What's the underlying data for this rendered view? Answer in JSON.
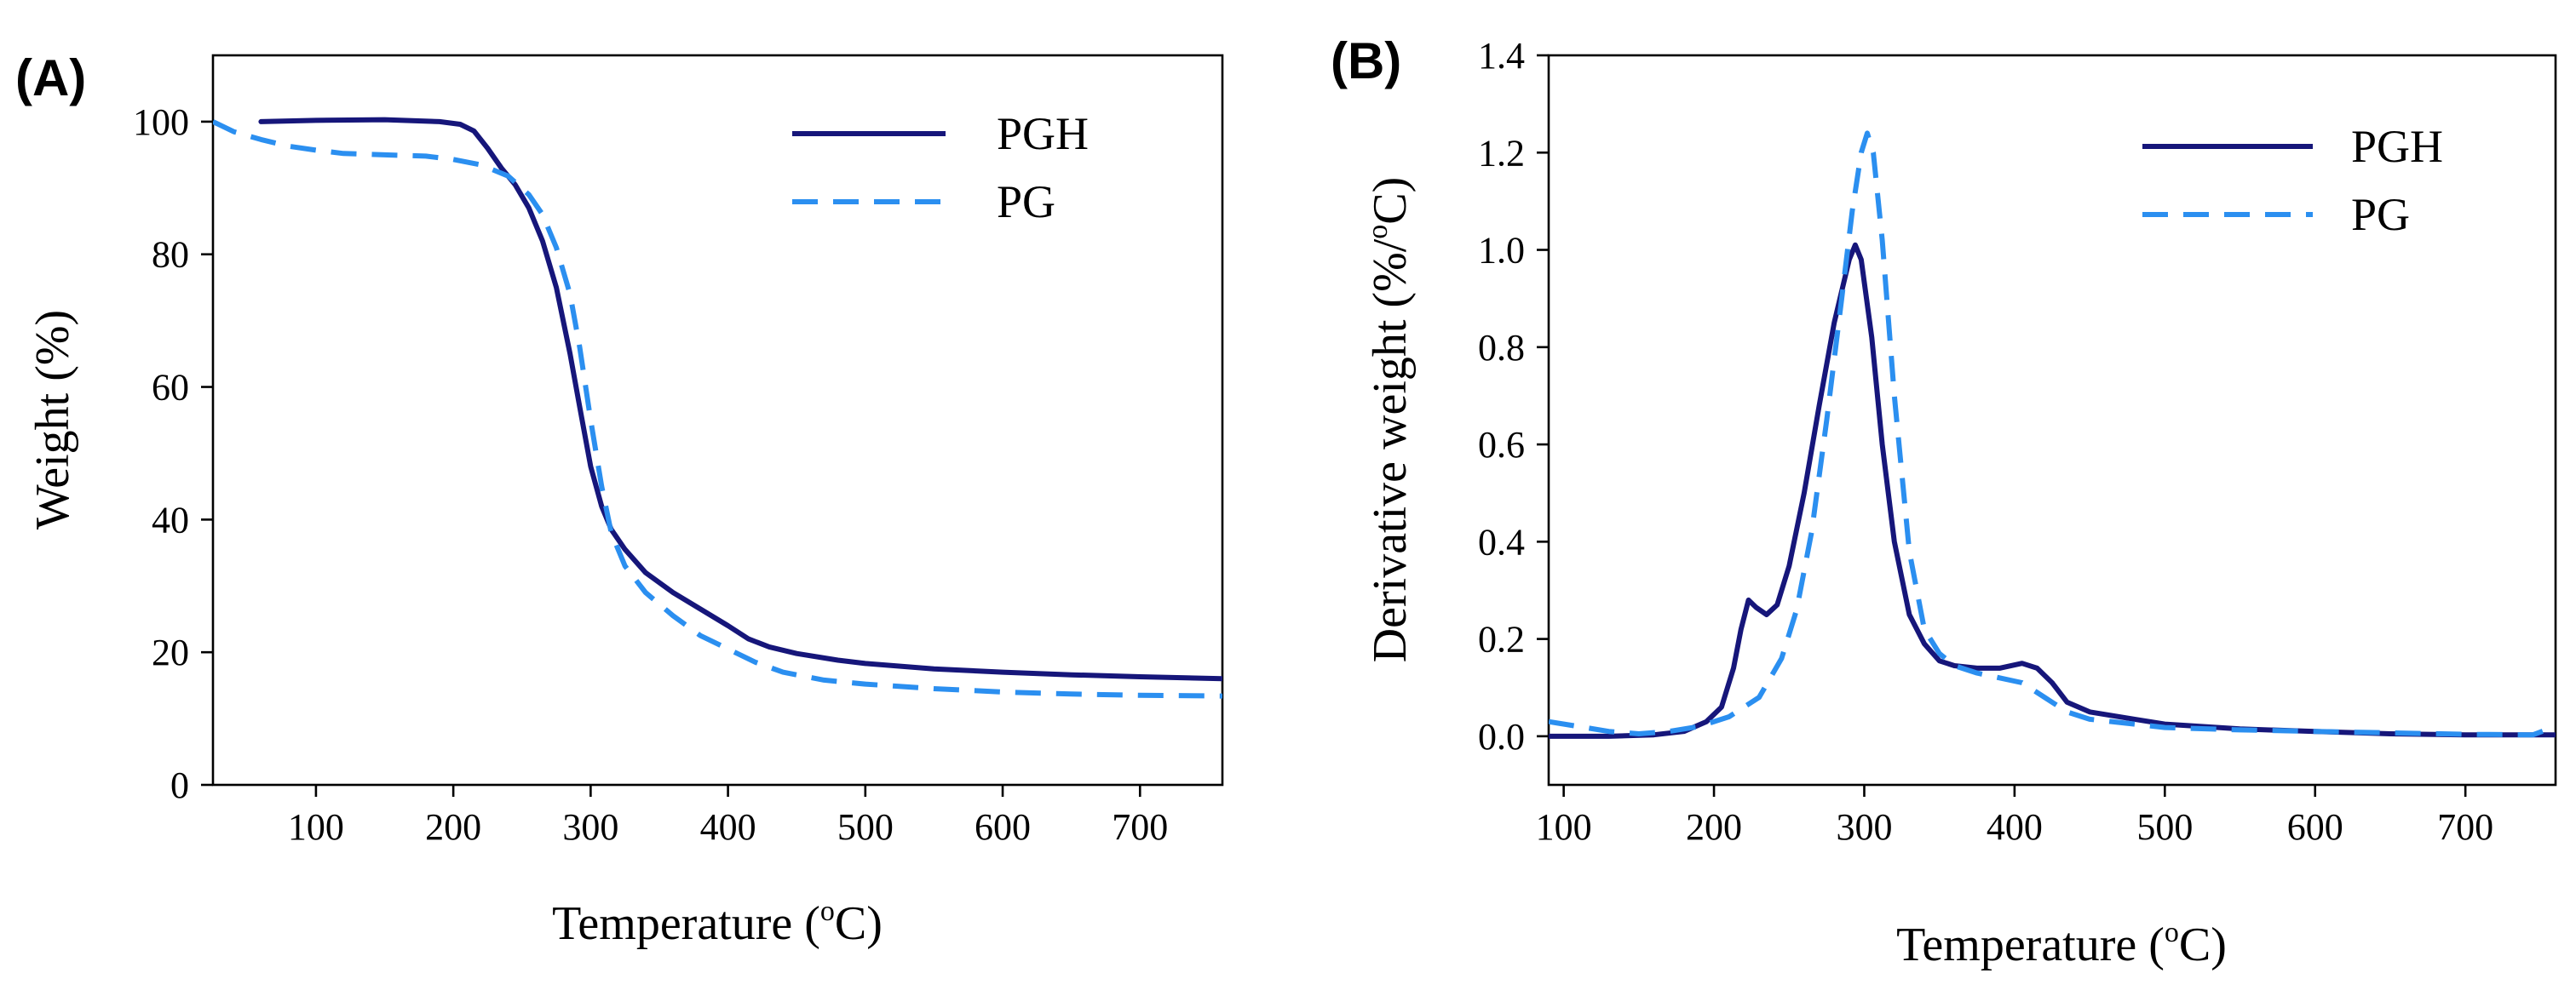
{
  "chart_data": [
    {
      "panel": "(A)",
      "type": "line",
      "title": "",
      "xlabel": {
        "pre": "Temperature (",
        "sup": "o",
        "post": "C)"
      },
      "ylabel": "Weight (%)",
      "xlim": [
        25,
        760
      ],
      "ylim": [
        0,
        110
      ],
      "xticks": [
        100,
        200,
        300,
        400,
        500,
        600,
        700
      ],
      "yticks": [
        0,
        20,
        40,
        60,
        80,
        100
      ],
      "grid": false,
      "legend_position": "top-right",
      "series": [
        {
          "name": "PGH",
          "color": "#16167a",
          "style": "solid",
          "points": [
            [
              60,
              100
            ],
            [
              100,
              100.2
            ],
            [
              150,
              100.3
            ],
            [
              190,
              100
            ],
            [
              205,
              99.6
            ],
            [
              215,
              98.6
            ],
            [
              225,
              96
            ],
            [
              235,
              93
            ],
            [
              245,
              90.5
            ],
            [
              255,
              87
            ],
            [
              265,
              82
            ],
            [
              275,
              75
            ],
            [
              285,
              65
            ],
            [
              292,
              57
            ],
            [
              300,
              48
            ],
            [
              308,
              42
            ],
            [
              315,
              38.5
            ],
            [
              325,
              35.5
            ],
            [
              340,
              32
            ],
            [
              360,
              29
            ],
            [
              380,
              26.5
            ],
            [
              400,
              24
            ],
            [
              415,
              22
            ],
            [
              430,
              20.8
            ],
            [
              450,
              19.8
            ],
            [
              480,
              18.8
            ],
            [
              500,
              18.3
            ],
            [
              550,
              17.5
            ],
            [
              600,
              17
            ],
            [
              650,
              16.6
            ],
            [
              700,
              16.3
            ],
            [
              760,
              16
            ]
          ]
        },
        {
          "name": "PG",
          "color": "#2b8ff0",
          "style": "dashed",
          "points": [
            [
              25,
              100
            ],
            [
              40,
              98.5
            ],
            [
              60,
              97.3
            ],
            [
              80,
              96.3
            ],
            [
              100,
              95.7
            ],
            [
              120,
              95.2
            ],
            [
              150,
              95
            ],
            [
              180,
              94.8
            ],
            [
              200,
              94.3
            ],
            [
              220,
              93.5
            ],
            [
              240,
              91.8
            ],
            [
              255,
              89
            ],
            [
              265,
              86
            ],
            [
              275,
              81
            ],
            [
              285,
              74
            ],
            [
              292,
              66
            ],
            [
              300,
              55
            ],
            [
              308,
              45
            ],
            [
              315,
              38
            ],
            [
              325,
              33
            ],
            [
              340,
              29
            ],
            [
              360,
              25.5
            ],
            [
              380,
              22.5
            ],
            [
              400,
              20.5
            ],
            [
              420,
              18.5
            ],
            [
              440,
              17
            ],
            [
              470,
              15.8
            ],
            [
              500,
              15.2
            ],
            [
              550,
              14.5
            ],
            [
              600,
              14
            ],
            [
              650,
              13.7
            ],
            [
              700,
              13.5
            ],
            [
              760,
              13.4
            ]
          ]
        }
      ]
    },
    {
      "panel": "(B)",
      "type": "line",
      "title": "",
      "xlabel": {
        "pre": "Temperature (",
        "sup": "o",
        "post": "C)"
      },
      "ylabel": {
        "pre": "Derivative weight (%/",
        "sup": "o",
        "post": "C)"
      },
      "xlim": [
        90,
        760
      ],
      "ylim": [
        -0.1,
        1.4
      ],
      "xticks": [
        100,
        200,
        300,
        400,
        500,
        600,
        700
      ],
      "yticks": [
        0.0,
        0.2,
        0.4,
        0.6,
        0.8,
        1.0,
        1.2,
        1.4
      ],
      "ytick_labels": [
        "0.0",
        "0.2",
        "0.4",
        "0.6",
        "0.8",
        "1.0",
        "1.2",
        "1.4"
      ],
      "grid": false,
      "legend_position": "top-right",
      "series": [
        {
          "name": "PGH",
          "color": "#16167a",
          "style": "solid",
          "points": [
            [
              90,
              0
            ],
            [
              130,
              0
            ],
            [
              160,
              0.003
            ],
            [
              180,
              0.01
            ],
            [
              195,
              0.03
            ],
            [
              205,
              0.06
            ],
            [
              213,
              0.14
            ],
            [
              218,
              0.22
            ],
            [
              223,
              0.28
            ],
            [
              228,
              0.265
            ],
            [
              235,
              0.25
            ],
            [
              242,
              0.27
            ],
            [
              250,
              0.35
            ],
            [
              260,
              0.5
            ],
            [
              270,
              0.68
            ],
            [
              280,
              0.85
            ],
            [
              290,
              0.98
            ],
            [
              294,
              1.01
            ],
            [
              298,
              0.98
            ],
            [
              305,
              0.82
            ],
            [
              312,
              0.6
            ],
            [
              320,
              0.4
            ],
            [
              330,
              0.25
            ],
            [
              340,
              0.19
            ],
            [
              350,
              0.155
            ],
            [
              360,
              0.145
            ],
            [
              375,
              0.14
            ],
            [
              390,
              0.14
            ],
            [
              405,
              0.15
            ],
            [
              415,
              0.14
            ],
            [
              425,
              0.11
            ],
            [
              435,
              0.07
            ],
            [
              450,
              0.05
            ],
            [
              480,
              0.035
            ],
            [
              500,
              0.025
            ],
            [
              550,
              0.015
            ],
            [
              600,
              0.01
            ],
            [
              650,
              0.005
            ],
            [
              700,
              0.003
            ],
            [
              760,
              0.003
            ]
          ]
        },
        {
          "name": "PG",
          "color": "#2b8ff0",
          "style": "dashed",
          "points": [
            [
              90,
              0.03
            ],
            [
              110,
              0.02
            ],
            [
              130,
              0.01
            ],
            [
              150,
              0.005
            ],
            [
              170,
              0.01
            ],
            [
              190,
              0.02
            ],
            [
              210,
              0.04
            ],
            [
              230,
              0.08
            ],
            [
              245,
              0.16
            ],
            [
              255,
              0.26
            ],
            [
              265,
              0.42
            ],
            [
              275,
              0.65
            ],
            [
              285,
              0.9
            ],
            [
              292,
              1.08
            ],
            [
              298,
              1.2
            ],
            [
              302,
              1.24
            ],
            [
              306,
              1.2
            ],
            [
              312,
              1.02
            ],
            [
              320,
              0.7
            ],
            [
              330,
              0.38
            ],
            [
              340,
              0.22
            ],
            [
              350,
              0.17
            ],
            [
              360,
              0.145
            ],
            [
              375,
              0.13
            ],
            [
              390,
              0.12
            ],
            [
              405,
              0.11
            ],
            [
              420,
              0.08
            ],
            [
              435,
              0.05
            ],
            [
              450,
              0.035
            ],
            [
              480,
              0.025
            ],
            [
              500,
              0.018
            ],
            [
              550,
              0.013
            ],
            [
              600,
              0.01
            ],
            [
              650,
              0.007
            ],
            [
              700,
              0.004
            ],
            [
              745,
              0.003
            ],
            [
              760,
              0.02
            ]
          ]
        }
      ]
    }
  ]
}
